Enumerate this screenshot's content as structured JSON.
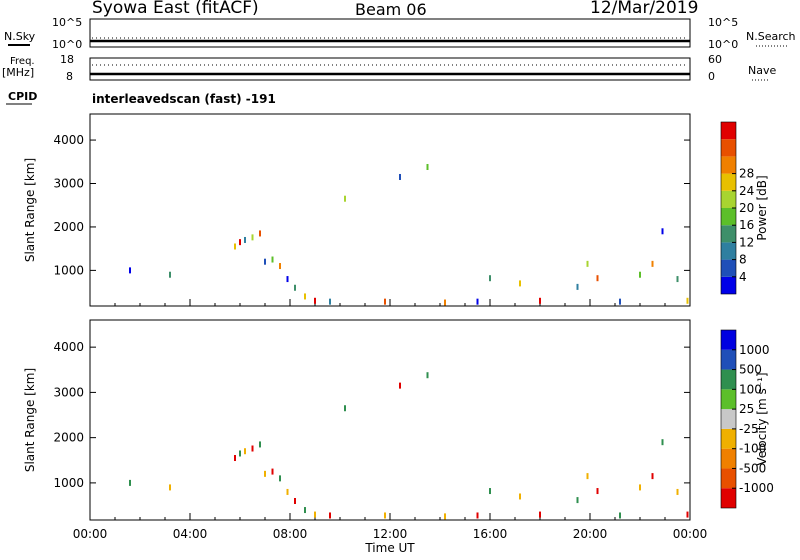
{
  "header": {
    "station": "Syowa East (fitACF)",
    "beam": "Beam 06",
    "date": "12/Mar/2019"
  },
  "strip": {
    "nsky_label": "N.Sky",
    "nsearch_label": "N.Search",
    "freq_label": "Freq.",
    "freq_unit": "[MHz]",
    "nave_label": "Nave",
    "cpid_label": "CPID",
    "cpid_text": "interleavedscan (fast) -191",
    "noise_ticks_left": [
      "10^5",
      "10^0"
    ],
    "noise_ticks_right": [
      "10^5",
      "10^0"
    ],
    "freq_ticks": [
      "18",
      "8"
    ],
    "nave_ticks": [
      "60",
      "0"
    ]
  },
  "chart_data": [
    {
      "type": "scatter",
      "title": "",
      "xlabel": "Time UT",
      "ylabel": "Slant Range [km]",
      "xlim": [
        0,
        24
      ],
      "ylim": [
        180,
        4600
      ],
      "x_ticks": [
        "00:00",
        "04:00",
        "08:00",
        "12:00",
        "16:00",
        "20:00",
        "00:00"
      ],
      "y_ticks": [
        1000,
        2000,
        3000,
        4000
      ],
      "colorbar": {
        "label": "Power [dB]",
        "tick_labels": [
          "4",
          "8",
          "12",
          "16",
          "20",
          "24",
          "28"
        ],
        "colors": [
          "#0000e8",
          "#1f4fb8",
          "#2f7fa0",
          "#3e8f6a",
          "#5cbf2a",
          "#a8d430",
          "#e8c000",
          "#f08000",
          "#e85000",
          "#e00000"
        ]
      },
      "series": [
        {
          "values": [
            [
              1.6,
              1000
            ],
            [
              3.2,
              900
            ],
            [
              5.8,
              1550
            ],
            [
              6.0,
              1650
            ],
            [
              6.2,
              1700
            ],
            [
              6.5,
              1760
            ],
            [
              6.8,
              1850
            ],
            [
              7.0,
              1200
            ],
            [
              7.3,
              1250
            ],
            [
              7.6,
              1100
            ],
            [
              7.9,
              800
            ],
            [
              8.2,
              600
            ],
            [
              8.6,
              400
            ],
            [
              9.0,
              300
            ],
            [
              9.6,
              280
            ],
            [
              10.2,
              2650
            ],
            [
              11.8,
              280
            ],
            [
              12.4,
              3150
            ],
            [
              13.5,
              3380
            ],
            [
              14.2,
              260
            ],
            [
              15.5,
              280
            ],
            [
              16.0,
              820
            ],
            [
              17.2,
              700
            ],
            [
              18.0,
              300
            ],
            [
              19.5,
              620
            ],
            [
              19.9,
              1150
            ],
            [
              20.3,
              820
            ],
            [
              21.2,
              280
            ],
            [
              22.0,
              900
            ],
            [
              22.5,
              1150
            ],
            [
              22.9,
              1900
            ],
            [
              23.5,
              800
            ],
            [
              23.9,
              300
            ]
          ]
        }
      ]
    },
    {
      "type": "scatter",
      "title": "",
      "xlabel": "Time UT",
      "ylabel": "Slant Range [km]",
      "xlim": [
        0,
        24
      ],
      "ylim": [
        180,
        4600
      ],
      "x_ticks": [
        "00:00",
        "04:00",
        "08:00",
        "12:00",
        "16:00",
        "20:00",
        "00:00"
      ],
      "y_ticks": [
        1000,
        2000,
        3000,
        4000
      ],
      "colorbar": {
        "label": "Velocity [m s⁻¹]",
        "tick_labels": [
          "1000",
          "500",
          "100",
          "25",
          "-25",
          "-100",
          "-500",
          "-1000"
        ],
        "colors": [
          "#0000e0",
          "#1f4fb8",
          "#2f8f4f",
          "#5cbf2a",
          "#c8c8c8",
          "#f0b000",
          "#f08000",
          "#e85000",
          "#e00000"
        ]
      },
      "series": [
        {
          "values": [
            [
              1.6,
              1000
            ],
            [
              3.2,
              900
            ],
            [
              5.8,
              1550
            ],
            [
              6.0,
              1650
            ],
            [
              6.2,
              1700
            ],
            [
              6.5,
              1760
            ],
            [
              6.8,
              1850
            ],
            [
              7.0,
              1200
            ],
            [
              7.3,
              1250
            ],
            [
              7.6,
              1100
            ],
            [
              7.9,
              800
            ],
            [
              8.2,
              600
            ],
            [
              8.6,
              400
            ],
            [
              9.0,
              300
            ],
            [
              9.6,
              280
            ],
            [
              10.2,
              2650
            ],
            [
              11.8,
              280
            ],
            [
              12.4,
              3150
            ],
            [
              13.5,
              3380
            ],
            [
              14.2,
              260
            ],
            [
              15.5,
              280
            ],
            [
              16.0,
              820
            ],
            [
              17.2,
              700
            ],
            [
              18.0,
              300
            ],
            [
              19.5,
              620
            ],
            [
              19.9,
              1150
            ],
            [
              20.3,
              820
            ],
            [
              21.2,
              280
            ],
            [
              22.0,
              900
            ],
            [
              22.5,
              1150
            ],
            [
              22.9,
              1900
            ],
            [
              23.5,
              800
            ],
            [
              23.9,
              300
            ]
          ]
        }
      ]
    }
  ]
}
